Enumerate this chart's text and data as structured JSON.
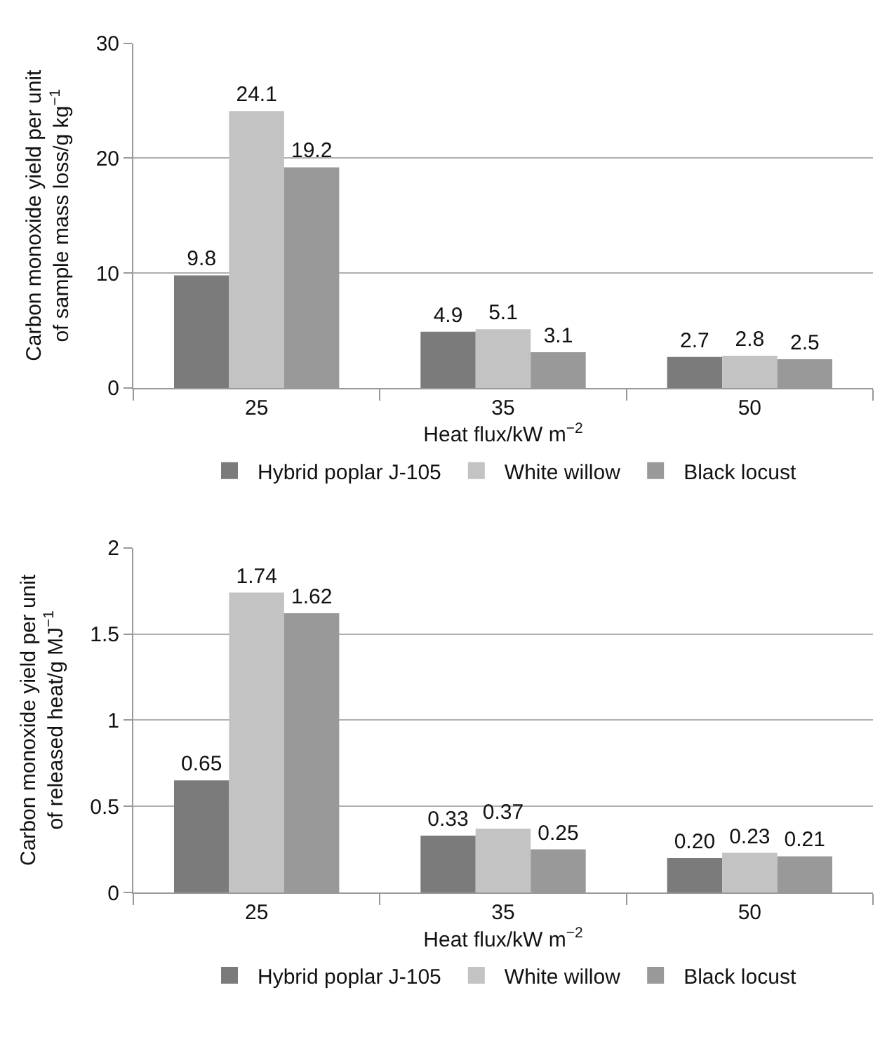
{
  "chart_data": [
    {
      "type": "bar",
      "categories": [
        "25",
        "35",
        "50"
      ],
      "xlabel": "Heat flux/kW m$^{−2}$",
      "ylabel": "Carbon monoxide yield per unit\nof sample mass loss/g kg$^{−1}$",
      "series": [
        {
          "name": "Hybrid poplar J-105",
          "color": "#7b7b7b",
          "values": [
            9.8,
            4.9,
            2.7
          ]
        },
        {
          "name": "White willow",
          "color": "#c3c3c3",
          "values": [
            24.1,
            5.1,
            2.8
          ]
        },
        {
          "name": "Black locust",
          "color": "#999999",
          "values": [
            19.2,
            3.1,
            2.5
          ]
        }
      ],
      "ylim": [
        0,
        30
      ],
      "yticks": [
        0,
        10,
        20,
        30
      ],
      "grid": "y",
      "legend": "bottom",
      "data_labels": true
    },
    {
      "type": "bar",
      "categories": [
        "25",
        "35",
        "50"
      ],
      "xlabel": "Heat flux/kW m$^{−2}$",
      "ylabel": "Carbon monoxide yield per unit\nof released heat/g MJ$^{−1}$",
      "series": [
        {
          "name": "Hybrid poplar J-105",
          "color": "#7b7b7b",
          "values": [
            0.65,
            0.33,
            0.2
          ],
          "value_labels": [
            "0.65",
            "0.33",
            "0.20"
          ]
        },
        {
          "name": "White willow",
          "color": "#c3c3c3",
          "values": [
            1.74,
            0.37,
            0.23
          ],
          "value_labels": [
            "1.74",
            "0.37",
            "0.23"
          ]
        },
        {
          "name": "Black locust",
          "color": "#999999",
          "values": [
            1.62,
            0.25,
            0.21
          ],
          "value_labels": [
            "1.62",
            "0.25",
            "0.21"
          ]
        }
      ],
      "ylim": [
        0,
        2
      ],
      "yticks": [
        0,
        0.5,
        1,
        1.5,
        2
      ],
      "grid": "y",
      "legend": "bottom"
    }
  ]
}
